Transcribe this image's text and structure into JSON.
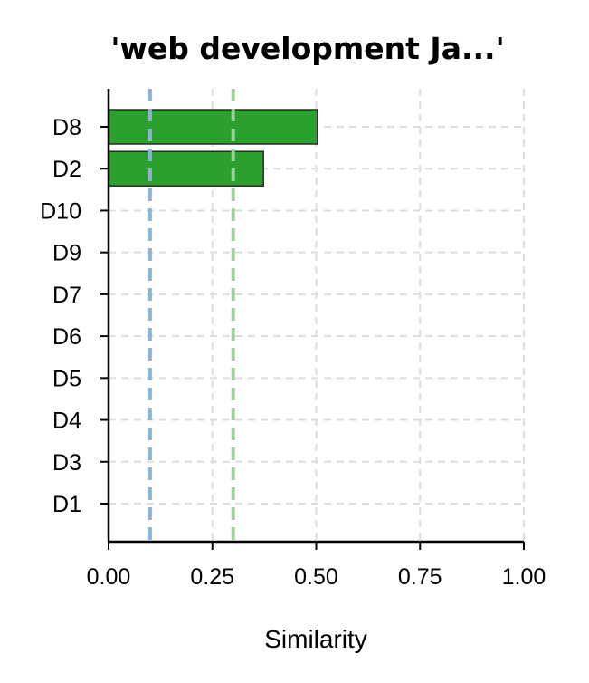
{
  "chart_data": {
    "type": "bar",
    "orientation": "horizontal",
    "title": "'web development Ja...'",
    "xlabel": "Similarity",
    "ylabel": "",
    "xlim": [
      0,
      1
    ],
    "x_ticks": [
      "0.00",
      "0.25",
      "0.50",
      "0.75",
      "1.00"
    ],
    "x_tick_values": [
      0,
      0.25,
      0.5,
      0.75,
      1.0
    ],
    "categories": [
      "D8",
      "D2",
      "D10",
      "D9",
      "D7",
      "D6",
      "D5",
      "D4",
      "D3",
      "D1"
    ],
    "values": [
      0.503,
      0.373,
      0,
      0,
      0,
      0,
      0,
      0,
      0,
      0
    ],
    "bar_color": "#2ca02c",
    "reference_lines": [
      {
        "x": 0.1,
        "color": "#8ab6d6",
        "style": "dashed"
      },
      {
        "x": 0.3,
        "color": "#98d298",
        "style": "dashed"
      }
    ],
    "grid": true,
    "grid_color": "#dddddd"
  }
}
